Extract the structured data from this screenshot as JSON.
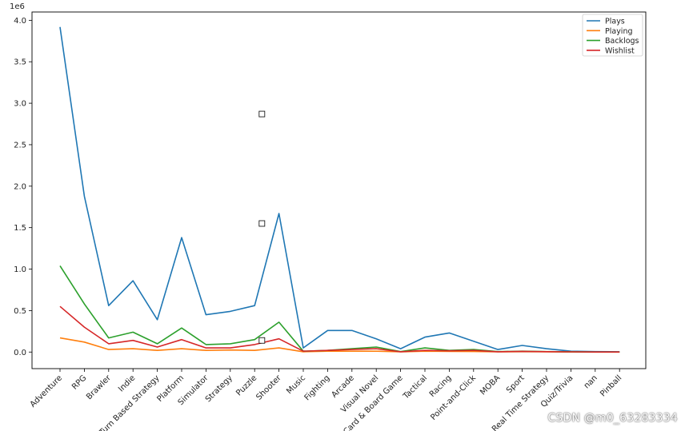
{
  "chart_data": {
    "type": "line",
    "title": "",
    "xlabel": "",
    "ylabel": "",
    "y_scale_label": "1e6",
    "ylim": [
      -0.2,
      4.1
    ],
    "yticks": [
      0.0,
      0.5,
      1.0,
      1.5,
      2.0,
      2.5,
      3.0,
      3.5,
      4.0
    ],
    "ytick_labels": [
      "0.0",
      "0.5",
      "1.0",
      "1.5",
      "2.0",
      "2.5",
      "3.0",
      "3.5",
      "4.0"
    ],
    "legend_position": "top-right",
    "grid": false,
    "categories": [
      "Adventure",
      "RPG",
      "Brawler",
      "Indie",
      "Turn Based Strategy",
      "Platform",
      "Simulator",
      "Strategy",
      "Puzzle",
      "Shooter",
      "Music",
      "Fighting",
      "Arcade",
      "Visual Novel",
      "Card & Board Game",
      "Tactical",
      "Racing",
      "Point-and-Click",
      "MOBA",
      "Sport",
      "Real Time Strategy",
      "Quiz/Trivia",
      "nan",
      "Pinball"
    ],
    "series": [
      {
        "name": "Plays",
        "color": "#1f77b4",
        "values": [
          3.92,
          1.88,
          0.56,
          0.86,
          0.39,
          1.38,
          0.45,
          0.49,
          0.56,
          1.67,
          0.05,
          0.26,
          0.26,
          0.16,
          0.04,
          0.18,
          0.23,
          0.13,
          0.03,
          0.08,
          0.04,
          0.01,
          0.005,
          0.003
        ]
      },
      {
        "name": "Playing",
        "color": "#ff7f0e",
        "values": [
          0.17,
          0.12,
          0.03,
          0.04,
          0.02,
          0.04,
          0.02,
          0.025,
          0.02,
          0.05,
          0.003,
          0.01,
          0.01,
          0.01,
          0.002,
          0.01,
          0.008,
          0.006,
          0.002,
          0.004,
          0.002,
          0.001,
          0.0,
          0.0
        ]
      },
      {
        "name": "Backlogs",
        "color": "#2ca02c",
        "values": [
          1.04,
          0.58,
          0.17,
          0.24,
          0.1,
          0.29,
          0.09,
          0.1,
          0.15,
          0.36,
          0.01,
          0.02,
          0.04,
          0.06,
          0.005,
          0.05,
          0.02,
          0.03,
          0.005,
          0.01,
          0.005,
          0.002,
          0.001,
          0.001
        ]
      },
      {
        "name": "Wishlist",
        "color": "#d62728",
        "values": [
          0.55,
          0.3,
          0.1,
          0.14,
          0.06,
          0.15,
          0.05,
          0.05,
          0.09,
          0.16,
          0.01,
          0.02,
          0.03,
          0.04,
          0.003,
          0.02,
          0.015,
          0.02,
          0.003,
          0.008,
          0.004,
          0.002,
          0.001,
          0.001
        ]
      }
    ]
  },
  "watermark": "CSDN @m0_63283334"
}
